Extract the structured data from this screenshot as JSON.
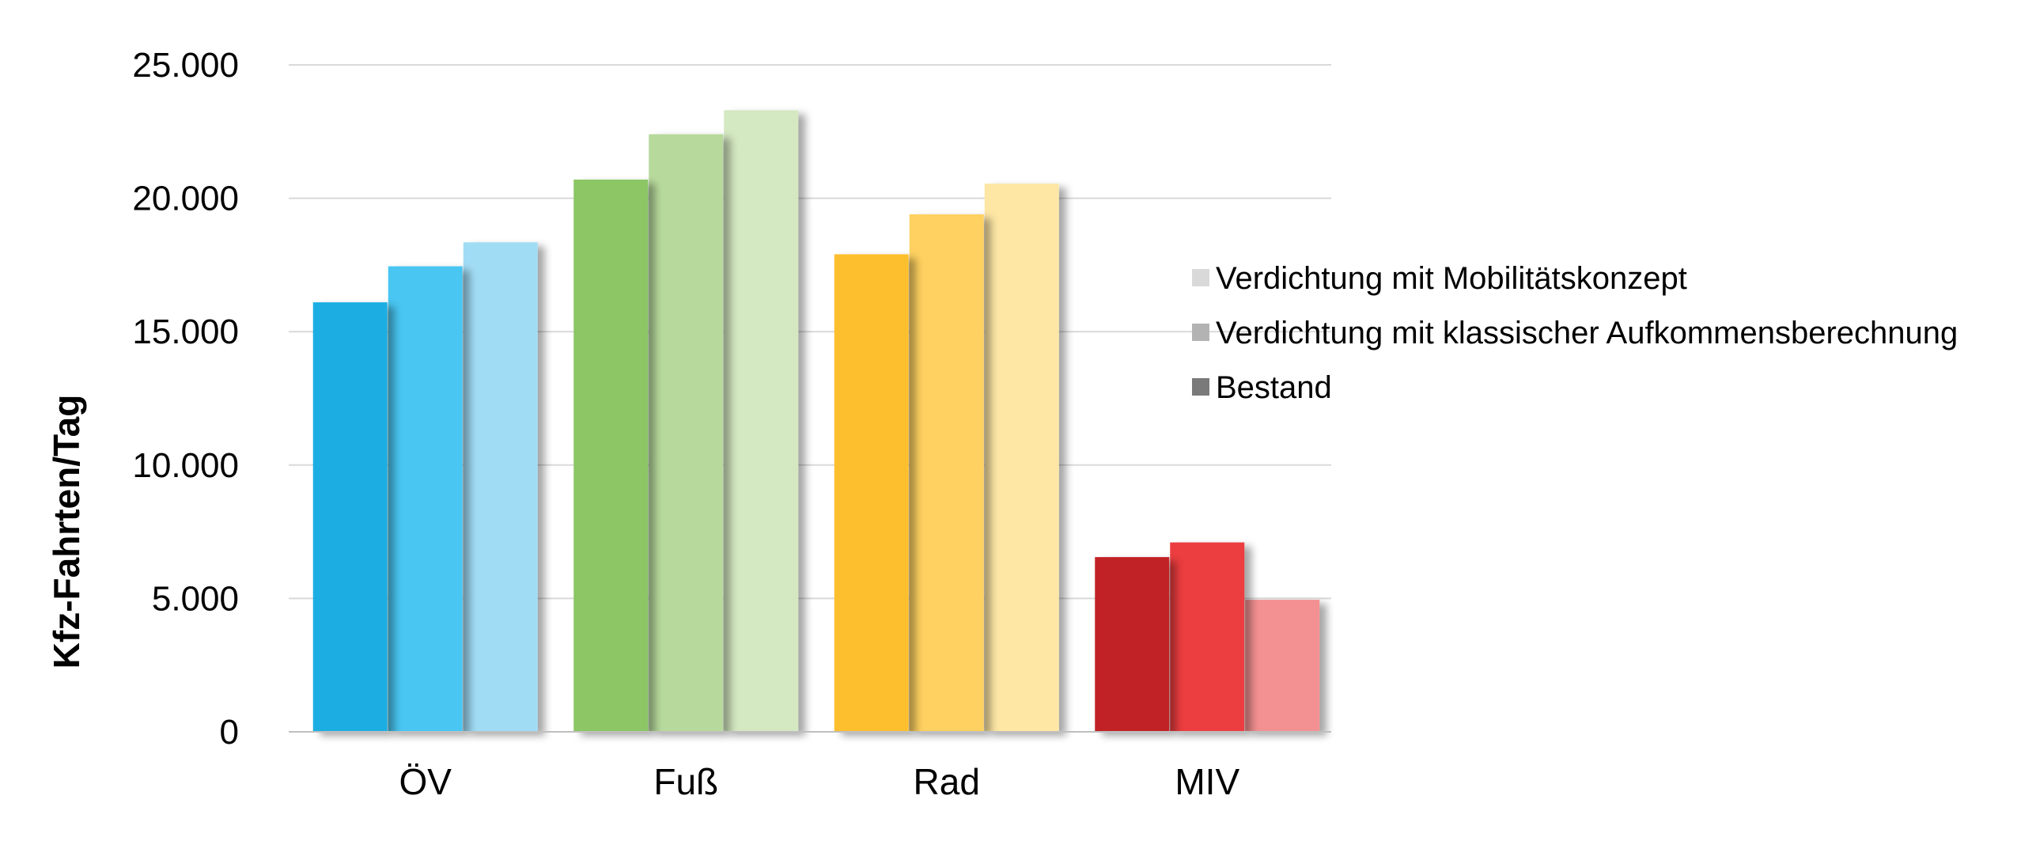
{
  "chart_data": {
    "type": "bar",
    "title": "",
    "xlabel": "",
    "ylabel": "Kfz-Fahrten/Tag",
    "ylim": [
      0,
      25000
    ],
    "yticks": [
      0,
      5000,
      10000,
      15000,
      20000,
      25000
    ],
    "ytick_labels": [
      "0",
      "5.000",
      "10.000",
      "15.000",
      "20.000",
      "25.000"
    ],
    "grid": true,
    "legend_position": "right",
    "categories": [
      "ÖV",
      "Fuß",
      "Rad",
      "MIV"
    ],
    "series": [
      {
        "name": "Bestand",
        "values": [
          16100,
          20700,
          17900,
          6550
        ]
      },
      {
        "name": "Verdichtung mit klassischer Aufkommensberechnung",
        "values": [
          17450,
          22400,
          19400,
          7100
        ]
      },
      {
        "name": "Verdichtung mit Mobilitätskonzept",
        "values": [
          18350,
          23300,
          20550,
          4950
        ]
      }
    ],
    "legend": [
      {
        "label": "Verdichtung mit Mobilitätskonzept",
        "swatch_color": "#d9d9d9"
      },
      {
        "label": "Verdichtung mit klassischer Aufkommensberechnung",
        "swatch_color": "#b3b3b3"
      },
      {
        "label": "Bestand",
        "swatch_color": "#7a7a7a"
      }
    ],
    "colors": [
      [
        "#1aaee3",
        "#4ac6f2",
        "#a1dcf5"
      ],
      [
        "#8cc665",
        "#b7da9c",
        "#d4e8c1"
      ],
      [
        "#fdbf2d",
        "#fed160",
        "#fee7a5"
      ],
      [
        "#c12027",
        "#ec3d3f",
        "#f39091"
      ]
    ]
  }
}
